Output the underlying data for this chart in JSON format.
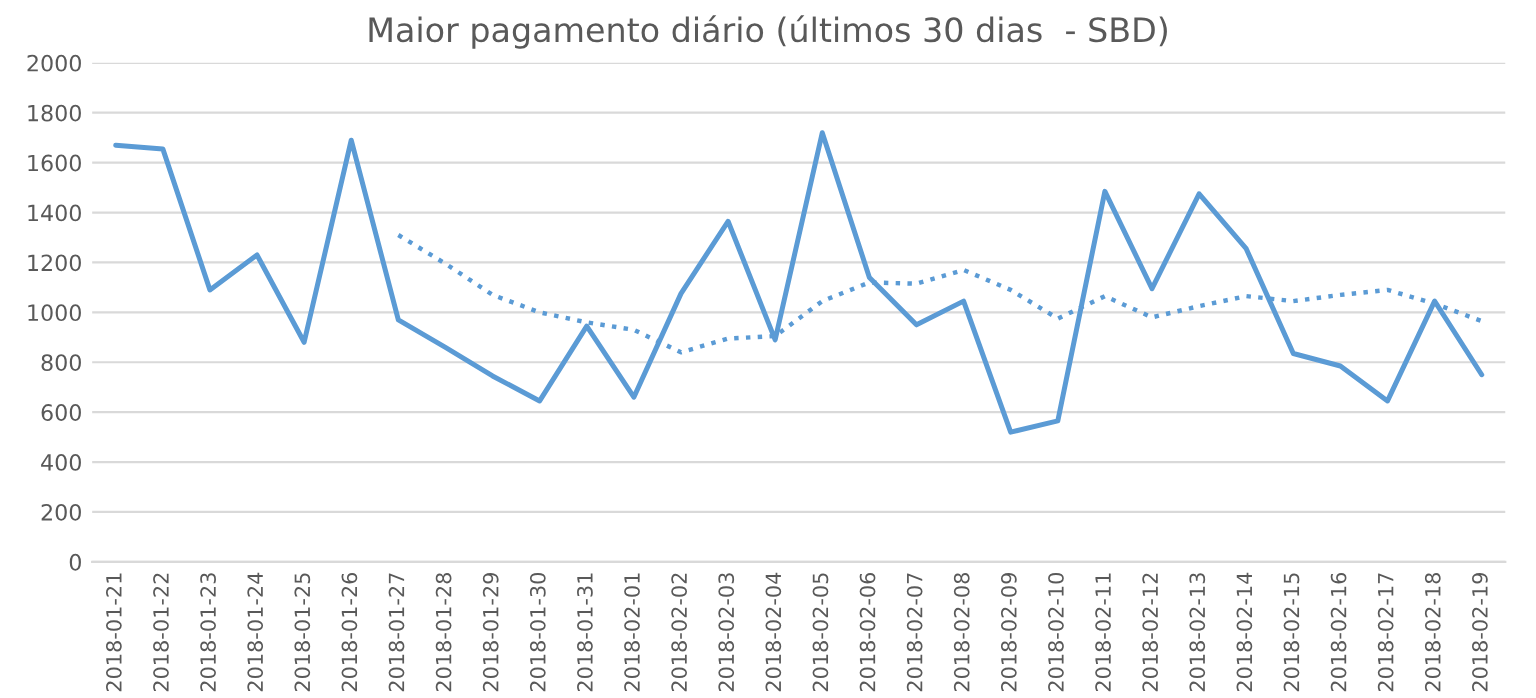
{
  "chart_data": {
    "type": "line",
    "title": "Maior pagamento diário (últimos 30 dias  - SBD)",
    "categories": [
      "2018-01-21",
      "2018-01-22",
      "2018-01-23",
      "2018-01-24",
      "2018-01-25",
      "2018-01-26",
      "2018-01-27",
      "2018-01-28",
      "2018-01-29",
      "2018-01-30",
      "2018-01-31",
      "2018-02-01",
      "2018-02-02",
      "2018-02-03",
      "2018-02-04",
      "2018-02-05",
      "2018-02-06",
      "2018-02-07",
      "2018-02-08",
      "2018-02-09",
      "2018-02-10",
      "2018-02-11",
      "2018-02-12",
      "2018-02-13",
      "2018-02-14",
      "2018-02-15",
      "2018-02-16",
      "2018-02-17",
      "2018-02-18",
      "2018-02-19"
    ],
    "series": [
      {
        "color": "#5b9bd5",
        "line_style": "solid",
        "values": [
          1670,
          1655,
          1090,
          1230,
          880,
          1690,
          970,
          860,
          745,
          645,
          945,
          660,
          1075,
          1365,
          890,
          1720,
          1140,
          950,
          1045,
          520,
          565,
          1485,
          1095,
          1475,
          1255,
          835,
          785,
          645,
          1045,
          750
        ]
      },
      {
        "color": "#5b9bd5",
        "line_style": "dotted",
        "values": [
          null,
          null,
          null,
          null,
          null,
          null,
          1310,
          1195,
          1070,
          1000,
          960,
          930,
          840,
          895,
          905,
          1045,
          1120,
          1115,
          1170,
          1090,
          975,
          1065,
          980,
          1025,
          1065,
          1045,
          1070,
          1090,
          1035,
          965
        ]
      }
    ],
    "ylim": [
      0,
      2000
    ],
    "yticks": [
      0,
      200,
      400,
      600,
      800,
      1000,
      1200,
      1400,
      1600,
      1800,
      2000
    ],
    "grid": "y",
    "legend": false,
    "marker": "none"
  }
}
